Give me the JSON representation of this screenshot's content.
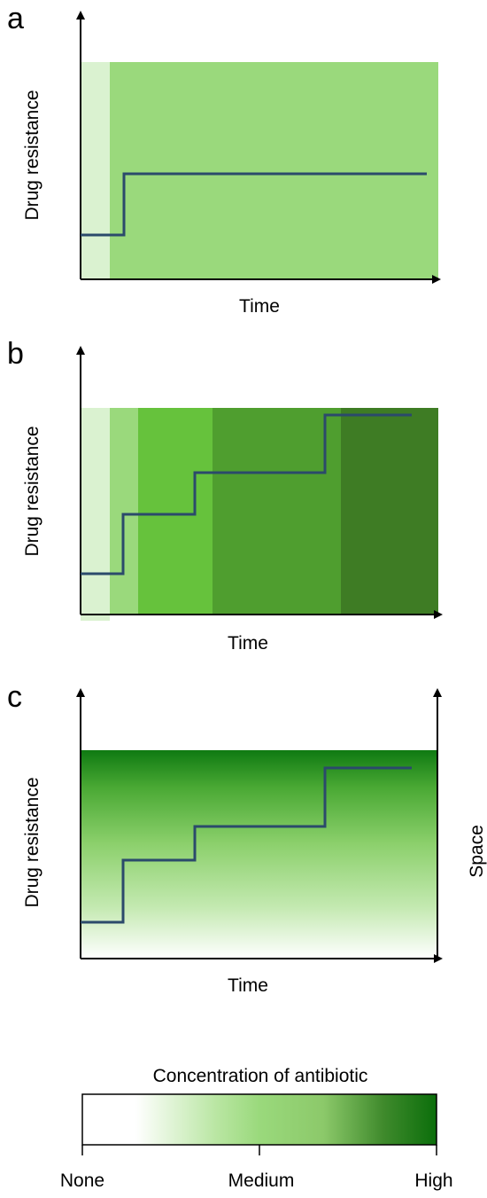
{
  "panels": [
    {
      "letter": "a",
      "ylabel": "Drug resistance",
      "xlabel": "Time",
      "right_label": ""
    },
    {
      "letter": "b",
      "ylabel": "Drug resistance",
      "xlabel": "Time",
      "right_label": ""
    },
    {
      "letter": "c",
      "ylabel": "Drug resistance",
      "xlabel": "Time",
      "right_label": "Space"
    }
  ],
  "legend": {
    "title": "Concentration of antibiotic",
    "ticks": [
      "None",
      "Medium",
      "High"
    ]
  },
  "colors": {
    "none": "#ffffff",
    "very_light": "#daf2d0",
    "light": "#9ad97c",
    "medium": "#66c23c",
    "dark": "#4f9e2f",
    "darker": "#3e7c24",
    "high": "#0b6e0b",
    "line": "#2b4a6b"
  }
}
